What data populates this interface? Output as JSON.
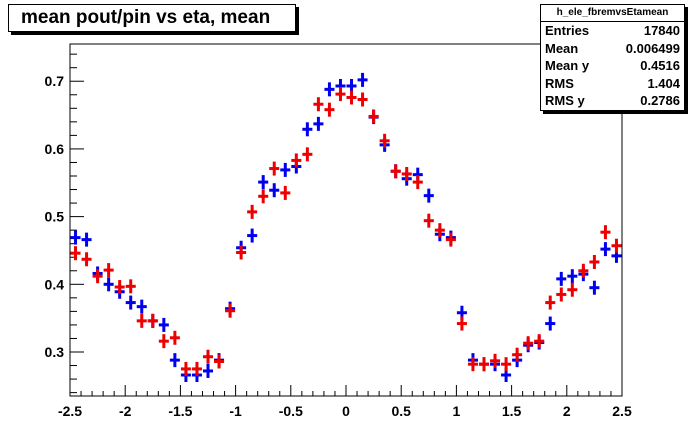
{
  "title": "mean pout/pin vs eta, mean",
  "stats": {
    "name": "h_ele_fbremvsEtamean",
    "rows": [
      {
        "label": "Entries",
        "value": "17840"
      },
      {
        "label": "Mean",
        "value": "0.006499"
      },
      {
        "label": "Mean y",
        "value": "0.4516"
      },
      {
        "label": "RMS",
        "value": "1.404"
      },
      {
        "label": "RMS y",
        "value": "0.2786"
      }
    ]
  },
  "chart_data": {
    "type": "scatter",
    "title": "mean pout/pin vs eta, mean",
    "xlabel": "",
    "ylabel": "",
    "xlim": [
      -2.5,
      2.5
    ],
    "ylim": [
      0.235,
      0.755
    ],
    "xticks": [
      "-2.5",
      "-2",
      "-1.5",
      "-1",
      "-0.5",
      "0",
      "0.5",
      "1",
      "1.5",
      "2",
      "2.5"
    ],
    "yticks": [
      "0.3",
      "0.4",
      "0.5",
      "0.6",
      "0.7"
    ],
    "grid": false,
    "colors": {
      "blue": "#0000ee",
      "red": "#ee0000"
    },
    "x": [
      -2.45,
      -2.35,
      -2.25,
      -2.15,
      -2.05,
      -1.95,
      -1.85,
      -1.75,
      -1.65,
      -1.55,
      -1.45,
      -1.35,
      -1.25,
      -1.15,
      -1.05,
      -0.95,
      -0.85,
      -0.75,
      -0.65,
      -0.55,
      -0.45,
      -0.35,
      -0.25,
      -0.15,
      -0.05,
      0.05,
      0.15,
      0.25,
      0.35,
      0.45,
      0.55,
      0.65,
      0.75,
      0.85,
      0.95,
      1.05,
      1.15,
      1.25,
      1.35,
      1.45,
      1.55,
      1.65,
      1.75,
      1.85,
      1.95,
      2.05,
      2.15,
      2.25,
      2.35,
      2.45
    ],
    "series": [
      {
        "color": "blue",
        "values": [
          0.469,
          0.466,
          0.416,
          0.4,
          0.389,
          0.373,
          0.367,
          0.346,
          0.34,
          0.288,
          0.266,
          0.266,
          0.272,
          0.288,
          0.364,
          0.454,
          0.472,
          0.551,
          0.539,
          0.569,
          0.574,
          0.629,
          0.637,
          0.688,
          0.693,
          0.693,
          0.702,
          0.647,
          0.606,
          0.567,
          0.556,
          0.562,
          0.531,
          0.474,
          0.469,
          0.358,
          0.288,
          0.282,
          0.282,
          0.266,
          0.288,
          0.31,
          0.314,
          0.342,
          0.408,
          0.412,
          0.415,
          0.395,
          0.452,
          0.442
        ]
      },
      {
        "color": "red",
        "values": [
          0.446,
          0.437,
          0.412,
          0.421,
          0.396,
          0.397,
          0.346,
          0.346,
          0.316,
          0.321,
          0.275,
          0.275,
          0.293,
          0.286,
          0.361,
          0.447,
          0.507,
          0.53,
          0.571,
          0.535,
          0.583,
          0.592,
          0.666,
          0.658,
          0.681,
          0.676,
          0.673,
          0.648,
          0.612,
          0.567,
          0.563,
          0.551,
          0.494,
          0.48,
          0.466,
          0.342,
          0.282,
          0.282,
          0.287,
          0.282,
          0.296,
          0.313,
          0.316,
          0.373,
          0.385,
          0.392,
          0.42,
          0.433,
          0.477,
          0.457
        ]
      }
    ]
  }
}
